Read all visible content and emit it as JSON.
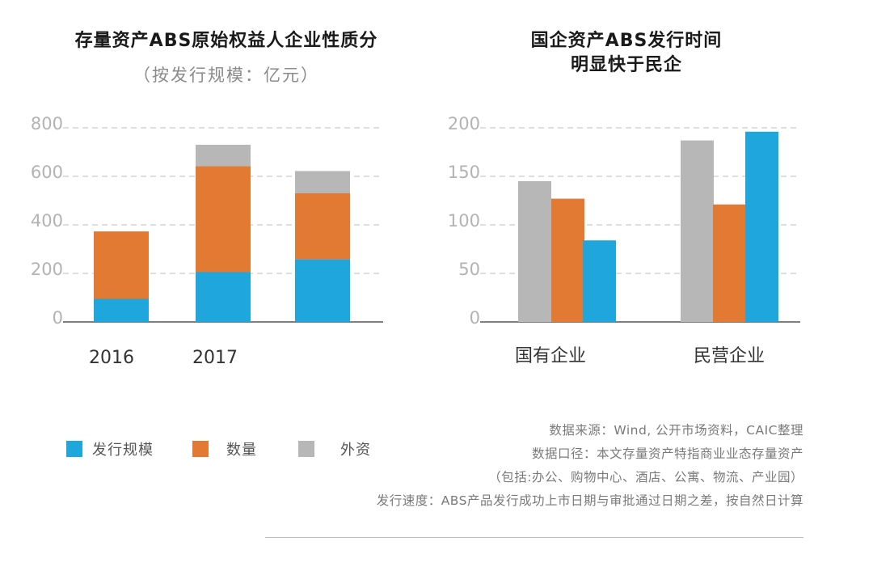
{
  "colors": {
    "blue": "#1ea6dd",
    "orange": "#e27a33",
    "gray": "#b7b7b7",
    "grid": "#bcbcbc",
    "axis": "#333333"
  },
  "chart_data": [
    {
      "type": "bar",
      "stacked": true,
      "title": "存量资产ABS原始权益人企业性质分",
      "subtitle": "（按发行规模：亿元）",
      "categories": [
        "2016",
        "2017",
        ""
      ],
      "series": [
        {
          "name": "发行规模",
          "color": "blue",
          "values": [
            95,
            205,
            258
          ]
        },
        {
          "name": "数量",
          "color": "orange",
          "values": [
            278,
            437,
            272
          ]
        },
        {
          "name": "外资",
          "color": "gray",
          "values": [
            0,
            88,
            92
          ]
        }
      ],
      "yticks": [
        0,
        200,
        400,
        600,
        800
      ],
      "ylim": [
        0,
        800
      ],
      "grid": true
    },
    {
      "type": "bar",
      "stacked": false,
      "title_lines": [
        "国企资产ABS发行时间",
        "明显快于民企"
      ],
      "categories": [
        "国有企业",
        "民营企业"
      ],
      "series": [
        {
          "name": "外资",
          "color": "gray",
          "values": [
            145,
            187
          ]
        },
        {
          "name": "数量",
          "color": "orange",
          "values": [
            127,
            121
          ]
        },
        {
          "name": "发行规模",
          "color": "blue",
          "values": [
            84,
            196
          ]
        }
      ],
      "yticks": [
        0,
        50,
        100,
        150,
        200
      ],
      "ylim": [
        0,
        200
      ],
      "grid": true
    }
  ],
  "legend": [
    {
      "label": "发行规模",
      "color": "blue"
    },
    {
      "label": "数量",
      "color": "orange"
    },
    {
      "label": "外资",
      "color": "gray"
    }
  ],
  "notes": [
    "数据来源：Wind, 公开市场资料，CAIC整理",
    "数据口径：本文存量资产特指商业业态存量资产",
    "（包括:办公、购物中心、酒店、公寓、物流、产业园）",
    "发行速度：ABS产品发行成功上市日期与审批通过日期之差，按自然日计算"
  ]
}
